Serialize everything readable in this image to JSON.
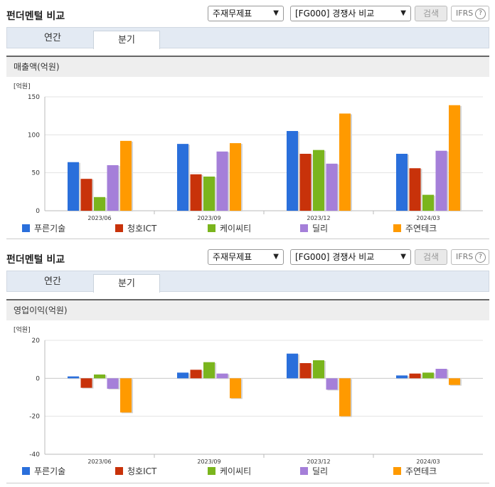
{
  "header": {
    "title": "펀더멘털 비교",
    "report_select": "주재무제표",
    "compare_select": "[FG000] 경쟁사 비교",
    "search_label": "검색",
    "ifrs_label": "IFRS",
    "help_label": "?"
  },
  "tabs": [
    {
      "label": "연간"
    },
    {
      "label": "분기"
    }
  ],
  "chart_data": [
    {
      "type": "bar",
      "title": "매출액(억원)",
      "unit": "[억원]",
      "categories": [
        "2023/06",
        "2023/09",
        "2023/12",
        "2024/03"
      ],
      "ylim": [
        0,
        150
      ],
      "yticks": [
        0,
        50,
        100,
        150
      ],
      "grid": true,
      "legend_position": "bottom",
      "series": [
        {
          "name": "푸른기술",
          "color": "#2a6fdb",
          "values": [
            64,
            88,
            105,
            75
          ]
        },
        {
          "name": "청호ICT",
          "color": "#c8320a",
          "values": [
            42,
            48,
            75,
            56
          ]
        },
        {
          "name": "케이씨티",
          "color": "#7ab51d",
          "values": [
            18,
            45,
            80,
            21
          ]
        },
        {
          "name": "딜리",
          "color": "#a57fd9",
          "values": [
            60,
            78,
            62,
            79
          ]
        },
        {
          "name": "주연테크",
          "color": "#ff9a00",
          "values": [
            92,
            89,
            128,
            139
          ]
        }
      ]
    },
    {
      "type": "bar",
      "title": "영업이익(억원)",
      "unit": "[억원]",
      "categories": [
        "2023/06",
        "2023/09",
        "2023/12",
        "2024/03"
      ],
      "ylim": [
        -40,
        20
      ],
      "yticks": [
        -40,
        -20,
        0,
        20
      ],
      "grid": true,
      "legend_position": "bottom",
      "series": [
        {
          "name": "푸른기술",
          "color": "#2a6fdb",
          "values": [
            1,
            3,
            13,
            1.5
          ]
        },
        {
          "name": "청호ICT",
          "color": "#c8320a",
          "values": [
            -5,
            4.5,
            8,
            2.5
          ]
        },
        {
          "name": "케이씨티",
          "color": "#7ab51d",
          "values": [
            2,
            8.5,
            9.5,
            3
          ]
        },
        {
          "name": "딜리",
          "color": "#a57fd9",
          "values": [
            -5.5,
            2.5,
            -6,
            5
          ]
        },
        {
          "name": "주연테크",
          "color": "#ff9a00",
          "values": [
            -18,
            -10.5,
            -20,
            -3.5
          ]
        }
      ]
    }
  ]
}
